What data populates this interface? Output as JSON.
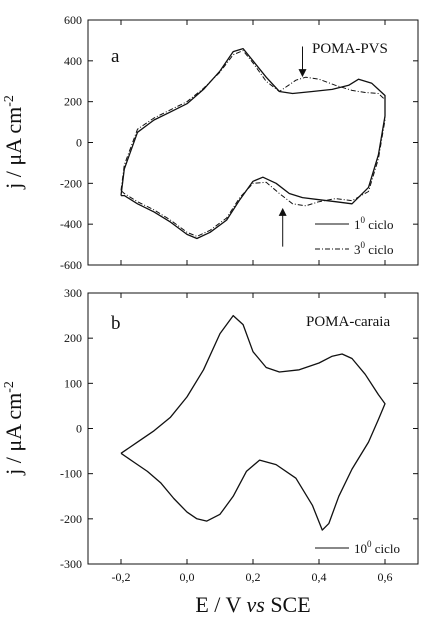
{
  "figure": {
    "xlabel_parts": [
      "E / V ",
      "vs",
      " SCE"
    ],
    "ylabel": "j / μA cm",
    "ylabel_exponent": "-2"
  },
  "chart_data": [
    {
      "type": "line",
      "panel_label": "a",
      "annotation": "POMA-PVS",
      "xlim": [
        -0.3,
        0.7
      ],
      "ylim": [
        -600,
        600
      ],
      "yticks": [
        -600,
        -400,
        -200,
        0,
        200,
        400,
        600
      ],
      "ytick_labels": [
        "-600",
        "-400",
        "-200",
        "0",
        "200",
        "400",
        "600"
      ],
      "xticks": [
        -0.2,
        0.0,
        0.2,
        0.4,
        0.6
      ],
      "xtick_labels": [],
      "xlabel": "",
      "ylabel": "j / μA cm-2",
      "legend_position": "bottom-right",
      "arrows": [
        {
          "x": 0.35,
          "from_y": 470,
          "to_y": 340
        },
        {
          "x": 0.29,
          "from_y": -510,
          "to_y": -340
        }
      ],
      "series": [
        {
          "name": "1⁰ ciclo",
          "style": "solid",
          "legend_base": "1",
          "legend_sup": "0",
          "legend_rest": " ciclo",
          "x": [
            -0.2,
            -0.19,
            -0.15,
            -0.1,
            -0.05,
            0.0,
            0.05,
            0.1,
            0.14,
            0.17,
            0.2,
            0.24,
            0.28,
            0.32,
            0.38,
            0.44,
            0.49,
            0.52,
            0.56,
            0.58,
            0.6,
            0.6,
            0.58,
            0.55,
            0.5,
            0.45,
            0.4,
            0.35,
            0.31,
            0.27,
            0.23,
            0.2,
            0.16,
            0.12,
            0.07,
            0.03,
            0.0,
            -0.05,
            -0.1,
            -0.15,
            -0.19,
            -0.2
          ],
          "y": [
            -260,
            -130,
            50,
            110,
            150,
            190,
            260,
            350,
            445,
            460,
            400,
            320,
            250,
            240,
            250,
            260,
            280,
            310,
            290,
            260,
            230,
            130,
            -60,
            -220,
            -300,
            -290,
            -280,
            -270,
            -250,
            -200,
            -170,
            -190,
            -280,
            -380,
            -440,
            -470,
            -450,
            -390,
            -340,
            -300,
            -260,
            -260
          ]
        },
        {
          "name": "3⁰ ciclo",
          "style": "dash-dot",
          "legend_base": "3",
          "legend_sup": "0",
          "legend_rest": " ciclo",
          "x": [
            -0.2,
            -0.19,
            -0.15,
            -0.1,
            -0.05,
            0.0,
            0.05,
            0.1,
            0.14,
            0.17,
            0.2,
            0.24,
            0.28,
            0.33,
            0.36,
            0.4,
            0.45,
            0.5,
            0.54,
            0.58,
            0.6,
            0.6,
            0.58,
            0.55,
            0.5,
            0.45,
            0.4,
            0.36,
            0.32,
            0.28,
            0.24,
            0.2,
            0.16,
            0.12,
            0.07,
            0.03,
            0.0,
            -0.05,
            -0.1,
            -0.15,
            -0.19,
            -0.2
          ],
          "y": [
            -235,
            -110,
            65,
            120,
            160,
            200,
            265,
            345,
            430,
            450,
            390,
            300,
            250,
            305,
            320,
            310,
            280,
            255,
            245,
            240,
            210,
            110,
            -80,
            -240,
            -285,
            -275,
            -290,
            -310,
            -300,
            -250,
            -195,
            -200,
            -270,
            -370,
            -430,
            -460,
            -440,
            -380,
            -330,
            -290,
            -250,
            -235
          ]
        }
      ]
    },
    {
      "type": "line",
      "panel_label": "b",
      "annotation": "POMA-caraia",
      "xlim": [
        -0.3,
        0.7
      ],
      "ylim": [
        -300,
        300
      ],
      "yticks": [
        -300,
        -200,
        -100,
        0,
        100,
        200,
        300
      ],
      "ytick_labels": [
        "-300",
        "-200",
        "-100",
        "0",
        "100",
        "200",
        "300"
      ],
      "xticks": [
        -0.2,
        0.0,
        0.2,
        0.4,
        0.6
      ],
      "xtick_labels": [
        "-0,2",
        "0,0",
        "0,2",
        "0,4",
        "0,6"
      ],
      "xlabel": "E / V vs SCE",
      "ylabel": "j / μA cm-2",
      "legend_position": "bottom-right",
      "series": [
        {
          "name": "10⁰ ciclo",
          "style": "solid",
          "legend_base": "10",
          "legend_sup": "0",
          "legend_rest": " ciclo",
          "x": [
            -0.2,
            -0.15,
            -0.1,
            -0.05,
            0.0,
            0.05,
            0.1,
            0.14,
            0.17,
            0.2,
            0.24,
            0.28,
            0.34,
            0.4,
            0.44,
            0.47,
            0.5,
            0.54,
            0.58,
            0.6,
            0.58,
            0.55,
            0.5,
            0.46,
            0.43,
            0.41,
            0.38,
            0.33,
            0.27,
            0.22,
            0.18,
            0.14,
            0.1,
            0.06,
            0.03,
            0.0,
            -0.04,
            -0.08,
            -0.12,
            -0.16,
            -0.2
          ],
          "y": [
            -55,
            -30,
            -5,
            25,
            70,
            130,
            210,
            250,
            230,
            170,
            135,
            125,
            130,
            145,
            160,
            165,
            155,
            120,
            75,
            55,
            20,
            -30,
            -90,
            -150,
            -210,
            -225,
            -170,
            -110,
            -80,
            -70,
            -95,
            -150,
            -190,
            -205,
            -200,
            -185,
            -155,
            -120,
            -95,
            -75,
            -55
          ]
        }
      ]
    }
  ]
}
